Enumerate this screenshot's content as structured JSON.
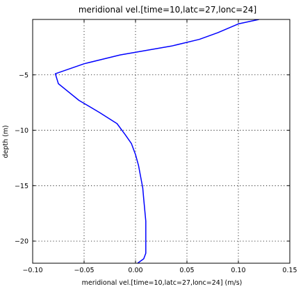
{
  "chart_data": {
    "type": "line",
    "title": "meridional vel.[time=10,latc=27,lonc=24]",
    "xlabel": "meridional vel.[time=10,latc=27,lonc=24] (m/s)",
    "ylabel": "depth (m)",
    "xlim": [
      -0.1,
      0.15
    ],
    "ylim": [
      -22,
      0
    ],
    "grid": true,
    "xticks": [
      -0.1,
      -0.05,
      0.0,
      0.05,
      0.1,
      0.15
    ],
    "xtick_labels": [
      "−0.10",
      "−0.05",
      "0.00",
      "0.05",
      "0.10",
      "0.15"
    ],
    "yticks": [
      -5,
      -10,
      -15,
      -20
    ],
    "ytick_labels": [
      "−5",
      "−10",
      "−15",
      "−20"
    ],
    "series": [
      {
        "color": "#0000ff",
        "x": [
          0.12,
          0.1,
          0.08,
          0.062,
          0.035,
          -0.015,
          -0.05,
          -0.078,
          -0.075,
          -0.055,
          -0.035,
          -0.018,
          -0.01,
          -0.004,
          0.0,
          0.003,
          0.005,
          0.007,
          0.008,
          0.009,
          0.01,
          0.01,
          0.01,
          0.01,
          0.008,
          0.002
        ],
        "y": [
          0.0,
          -0.4,
          -1.2,
          -1.8,
          -2.4,
          -3.2,
          -4.0,
          -4.9,
          -5.8,
          -7.3,
          -8.4,
          -9.4,
          -10.4,
          -11.2,
          -12.2,
          -13.2,
          -14.2,
          -15.2,
          -16.2,
          -17.2,
          -18.2,
          -19.2,
          -20.2,
          -21.1,
          -21.6,
          -22.0
        ]
      }
    ]
  }
}
